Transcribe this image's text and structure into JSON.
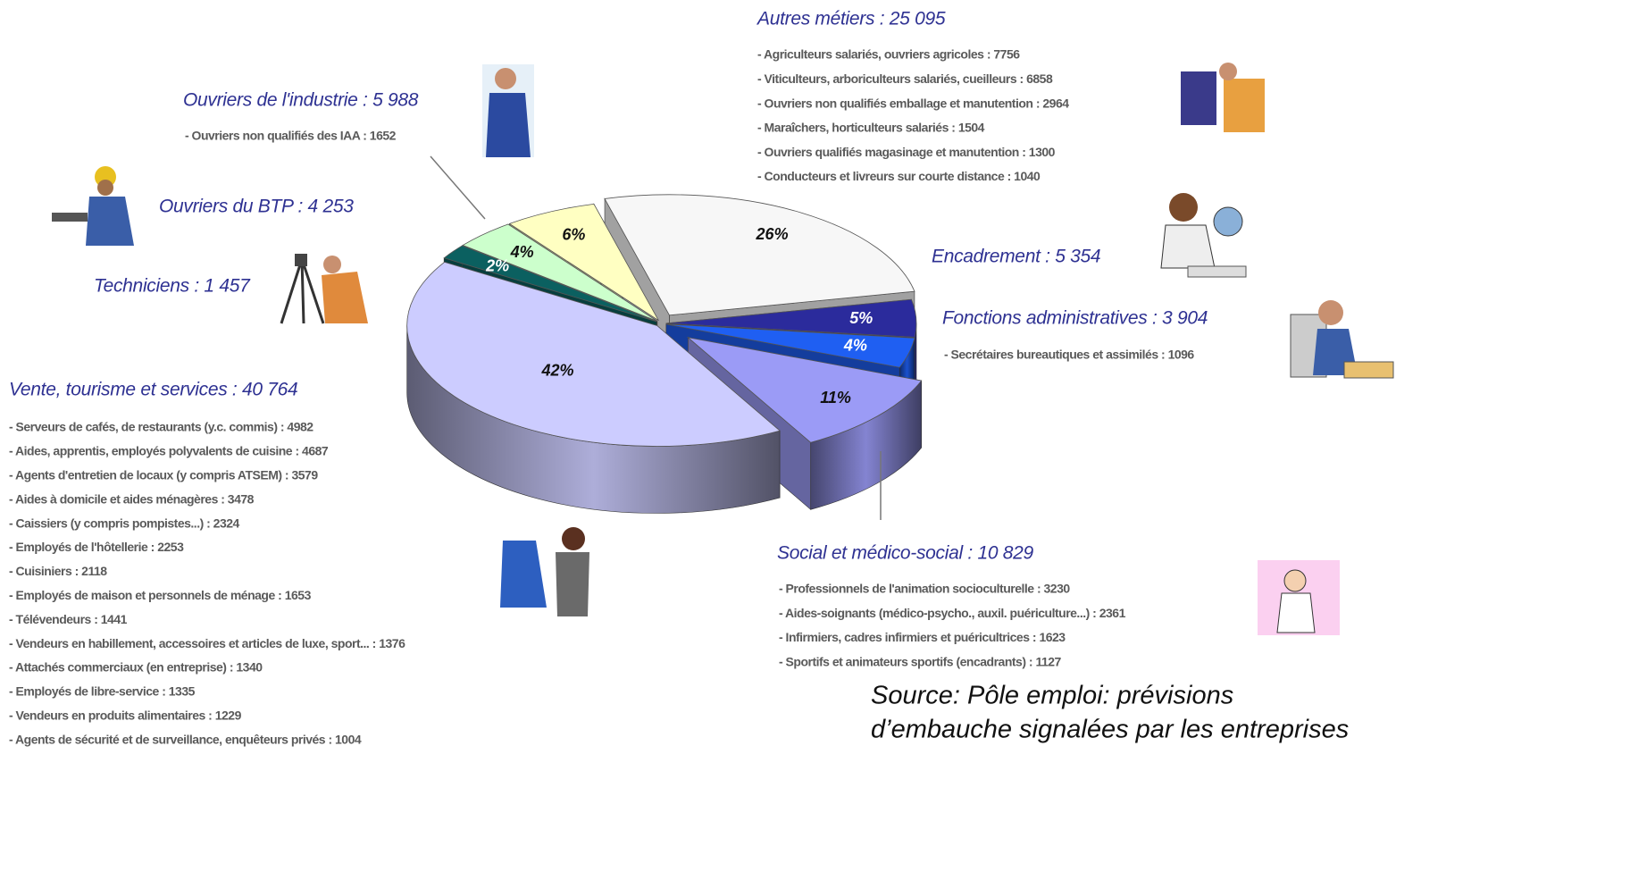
{
  "chart_data": {
    "type": "pie",
    "categories": [
      "Autres métiers : 25 095",
      "Encadrement : 5 354",
      "Fonctions administratives : 3 904",
      "Social et médico-social : 10 829",
      "Vente, tourisme et services : 40 764",
      "Techniciens : 1 457",
      "Ouvriers du BTP : 4 253",
      "Ouvriers de l'industrie : 5 988"
    ],
    "values": [
      26,
      5,
      4,
      11,
      42,
      2,
      4,
      6
    ],
    "value_labels": [
      "26%",
      "5%",
      "4%",
      "11%",
      "42%",
      "2%",
      "4%",
      "6%"
    ],
    "colors": [
      "#f7f7f7",
      "#2b2b9c",
      "#1f5ff2",
      "#9b9bf6",
      "#ccccff",
      "#0b6060",
      "#ccffcc",
      "#ffffc2"
    ],
    "details": [
      [
        "- Agriculteurs salariés, ouvriers agricoles : 7756",
        "- Viticulteurs, arboriculteurs salariés, cueilleurs : 6858",
        "- Ouvriers non qualifiés emballage et manutention : 2964",
        "- Maraîchers, horticulteurs salariés : 1504",
        "- Ouvriers qualifiés magasinage et manutention : 1300",
        "- Conducteurs et livreurs sur courte distance : 1040"
      ],
      [],
      [
        "- Secrétaires bureautiques et assimilés : 1096"
      ],
      [
        "- Professionnels de l'animation socioculturelle : 3230",
        "- Aides-soignants (médico-psycho., auxil. puériculture...) : 2361",
        "- Infirmiers, cadres infirmiers et puéricultrices : 1623",
        "- Sportifs et animateurs sportifs (encadrants) : 1127"
      ],
      [
        "- Serveurs de cafés, de restaurants (y.c. commis) : 4982",
        "- Aides, apprentis, employés polyvalents de cuisine : 4687",
        "- Agents d'entretien de locaux (y compris ATSEM) : 3579",
        "- Aides à domicile et aides ménagères : 3478",
        "- Caissiers (y compris pompistes...) : 2324",
        "- Employés de l'hôtellerie : 2253",
        "- Cuisiniers : 2118",
        "- Employés de maison et personnels de ménage : 1653",
        "- Télévendeurs : 1441",
        "- Vendeurs en habillement, accessoires et articles de luxe, sport... : 1376",
        "- Attachés commerciaux (en entreprise) : 1340",
        "- Employés de libre-service : 1335",
        "- Vendeurs en produits alimentaires : 1229",
        "- Agents de sécurité et de surveillance, enquêteurs privés : 1004"
      ],
      [],
      [],
      [
        "- Ouvriers non qualifiés des IAA : 1652"
      ]
    ],
    "source": [
      "Source: Pôle emploi: prévisions",
      "d’embauche signalées par les entreprises"
    ]
  }
}
